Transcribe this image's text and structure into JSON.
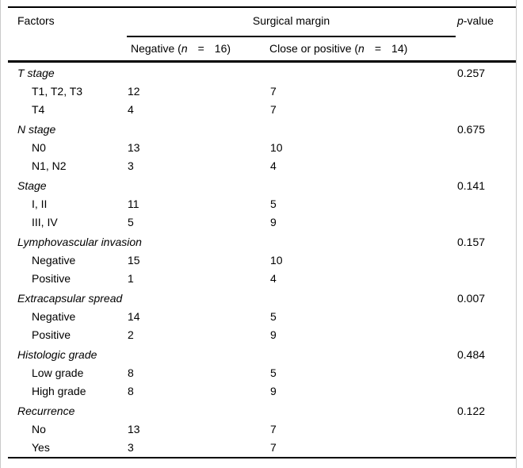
{
  "colors": {
    "text": "#000000",
    "rule": "#000000",
    "frame_edge": "#c9c9c9",
    "background": "#ffffff"
  },
  "table": {
    "header": {
      "factors": "Factors",
      "surgical_margin": "Surgical margin",
      "pvalue": {
        "p_italic": "p",
        "rest": "-value"
      },
      "col_negative": {
        "prefix": "Negative (",
        "n": "n",
        "eq": "=",
        "count": "16)"
      },
      "col_close": {
        "prefix": "Close or positive (",
        "n": "n",
        "eq": "=",
        "count": "14)"
      }
    },
    "groups": [
      {
        "label": "T stage",
        "pvalue": "0.257",
        "rows": [
          {
            "label": "T1, T2, T3",
            "neg": "12",
            "close": "7"
          },
          {
            "label": "T4",
            "neg": "4",
            "close": "7"
          }
        ]
      },
      {
        "label": "N stage",
        "pvalue": "0.675",
        "rows": [
          {
            "label": "N0",
            "neg": "13",
            "close": "10"
          },
          {
            "label": "N1, N2",
            "neg": "3",
            "close": "4"
          }
        ]
      },
      {
        "label": "Stage",
        "pvalue": "0.141",
        "rows": [
          {
            "label": "I, II",
            "neg": "11",
            "close": "5"
          },
          {
            "label": "III, IV",
            "neg": "5",
            "close": "9"
          }
        ]
      },
      {
        "label": "Lymphovascular invasion",
        "pvalue": "0.157",
        "rows": [
          {
            "label": "Negative",
            "neg": "15",
            "close": "10"
          },
          {
            "label": "Positive",
            "neg": "1",
            "close": "4"
          }
        ]
      },
      {
        "label": "Extracapsular spread",
        "pvalue": "0.007",
        "rows": [
          {
            "label": "Negative",
            "neg": "14",
            "close": "5"
          },
          {
            "label": "Positive",
            "neg": "2",
            "close": "9"
          }
        ]
      },
      {
        "label": "Histologic grade",
        "pvalue": "0.484",
        "rows": [
          {
            "label": "Low grade",
            "neg": "8",
            "close": "5"
          },
          {
            "label": "High grade",
            "neg": "8",
            "close": "9"
          }
        ]
      },
      {
        "label": "Recurrence",
        "pvalue": "0.122",
        "rows": [
          {
            "label": "No",
            "neg": "13",
            "close": "7"
          },
          {
            "label": "Yes",
            "neg": "3",
            "close": "7"
          }
        ]
      }
    ]
  }
}
